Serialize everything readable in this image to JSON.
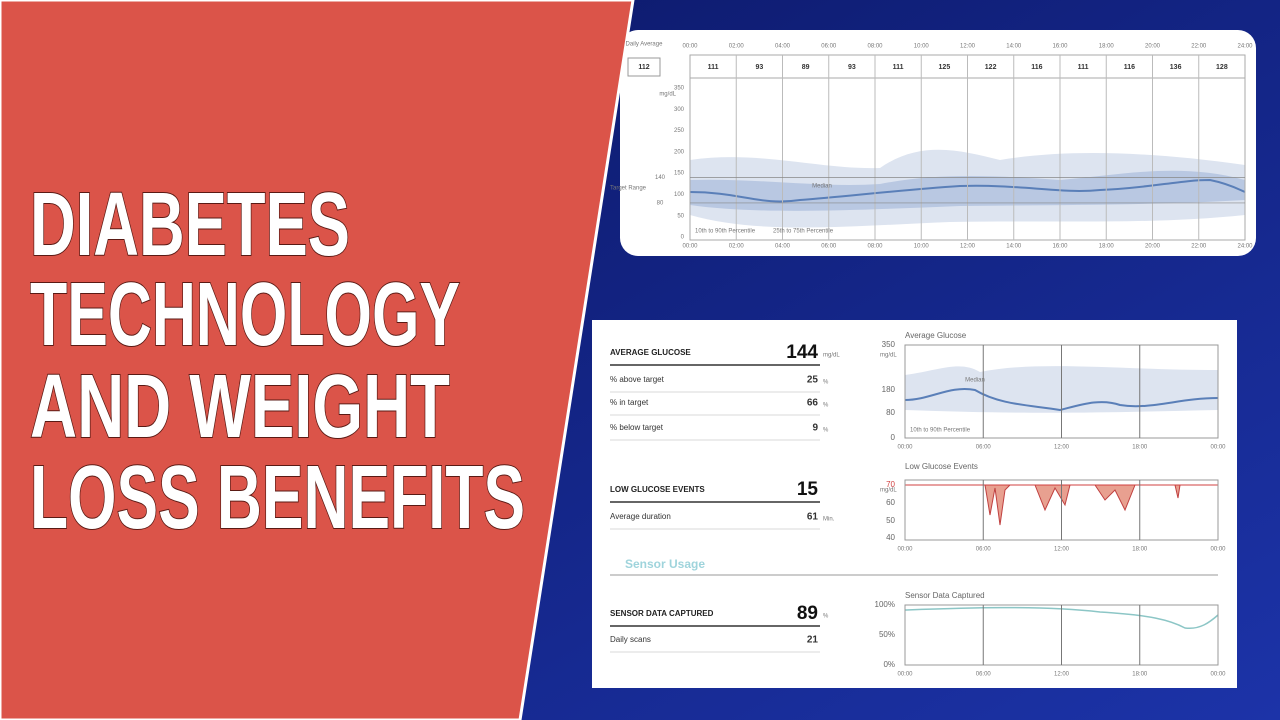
{
  "title_lines": [
    "DIABETES",
    "TECHNOLOGY",
    "AND WEIGHT",
    "LOSS BENEFITS"
  ],
  "daily_profile": {
    "daily_average_label": "Daily Average",
    "daily_average": 112,
    "hours": [
      "00:00",
      "02:00",
      "04:00",
      "06:00",
      "08:00",
      "10:00",
      "12:00",
      "14:00",
      "16:00",
      "18:00",
      "20:00",
      "22:00",
      "24:00"
    ],
    "hourly_values": [
      111,
      93,
      89,
      93,
      111,
      125,
      122,
      116,
      111,
      116,
      136,
      128
    ],
    "y_unit": "mg/dL",
    "yticks": [
      350,
      300,
      250,
      200,
      150,
      100,
      50,
      0
    ],
    "target_range_label": "Target Range",
    "target_values": [
      140,
      80
    ],
    "median_label": "Median",
    "legend": [
      "10th to 90th Percentile",
      "25th to 75th Percentile"
    ]
  },
  "summary": {
    "glucose_stats": [
      {
        "label": "AVERAGE GLUCOSE",
        "value": 144,
        "unit": "mg/dL"
      },
      {
        "label": "% above target",
        "value": 25,
        "unit": "%"
      },
      {
        "label": "% in target",
        "value": 66,
        "unit": "%"
      },
      {
        "label": "% below target",
        "value": 9,
        "unit": "%"
      }
    ],
    "low_stats": [
      {
        "label": "LOW GLUCOSE EVENTS",
        "value": 15
      },
      {
        "label": "Average duration",
        "value": 61,
        "unit": "Min."
      }
    ],
    "section": "Sensor Usage",
    "sensor_stats": [
      {
        "label": "SENSOR DATA CAPTURED",
        "value": 89,
        "unit": "%"
      },
      {
        "label": "Daily scans",
        "value": 21
      }
    ],
    "charts": [
      {
        "title": "Average Glucose",
        "y_unit": "mg/dL",
        "yticks": [
          350,
          180,
          80,
          0
        ],
        "median_label": "Median",
        "legend": "10th to 90th Percentile",
        "xticks": [
          "00:00",
          "06:00",
          "12:00",
          "18:00",
          "00:00"
        ]
      },
      {
        "title": "Low Glucose Events",
        "y_unit": "mg/dL",
        "yticks": [
          70,
          60,
          50,
          40
        ],
        "xticks": [
          "00:00",
          "06:00",
          "12:00",
          "18:00",
          "00:00"
        ]
      },
      {
        "title": "Sensor Data Captured",
        "yticks": [
          "100%",
          "50%",
          "0%"
        ],
        "xticks": [
          "00:00",
          "06:00",
          "12:00",
          "18:00",
          "00:00"
        ]
      }
    ]
  }
}
